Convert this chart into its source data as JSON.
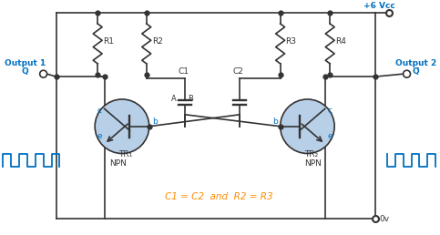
{
  "bg_color": "#ffffff",
  "line_color": "#333333",
  "blue_color": "#0070C0",
  "orange_color": "#FF8C00",
  "transistor_fill": "#b8cfe8",
  "vcc_label": "+6 Vcc",
  "gnd_label": "0v",
  "out1_label": "Output 1",
  "out2_label": "Output 2",
  "q_label": "Q",
  "qbar_label": "Q̅",
  "r1_label": "R1",
  "r2_label": "R2",
  "r3_label": "R3",
  "r4_label": "R4",
  "c1_label": "C1",
  "c2_label": "C2",
  "tr1_label": "TR₁",
  "tr2_label": "TR₂",
  "npn_label": "NPN",
  "equation_label": "C1 = C2  and  R2 = R3",
  "figsize": [
    4.83,
    2.58
  ],
  "dpi": 100
}
